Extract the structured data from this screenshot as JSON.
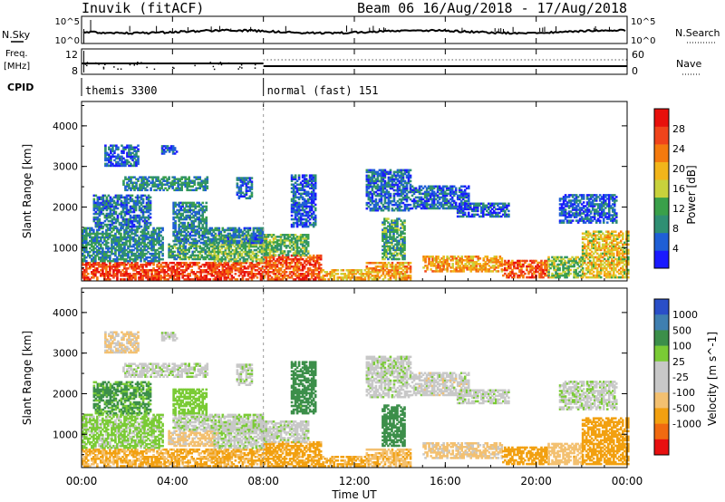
{
  "header": {
    "station": "Inuvik (fitACF)",
    "beam_dates": "Beam 06 16/Aug/2018 - 17/Aug/2018"
  },
  "top_panels": {
    "nsky_label": "N.Sky",
    "nsky_ticks": [
      "10^5",
      "10^0"
    ],
    "nsearch_label": "N.Search",
    "nsearch_ticks": [
      "10^5",
      "10^0"
    ],
    "freq_label_1": "Freq.",
    "freq_label_2": "[MHz]",
    "freq_ticks": [
      "12",
      "8"
    ],
    "nave_label": "Nave",
    "nave_ticks": [
      "60",
      "0"
    ],
    "cpid_label": "CPID",
    "cpid_segments": [
      {
        "start": 0,
        "label": "themis 3300"
      },
      {
        "start": 8,
        "label": "normal (fast) 151"
      }
    ]
  },
  "colors": {
    "power_scale": [
      "#1a1aff",
      "#1f5fd6",
      "#2f8f73",
      "#3aa04a",
      "#c8d23c",
      "#f2b51a",
      "#f47a0e",
      "#f0441b",
      "#e8100c"
    ],
    "velocity_scale": [
      "#e81010",
      "#f06a10",
      "#f2a010",
      "#f3c070",
      "#c8c8c8",
      "#c8c8c8",
      "#7acb35",
      "#3c8f4a",
      "#3f7fb0",
      "#2a4fc8"
    ],
    "grey": "#c8c8c8"
  },
  "chart_data": [
    {
      "type": "heatmap",
      "name": "power",
      "ylabel": "Slant Range [km]",
      "ylim": [
        180,
        4600
      ],
      "yticks": [
        1000,
        2000,
        3000,
        4000
      ],
      "xlim": [
        0,
        24
      ],
      "colorbar_label": "Power [dB]",
      "colorbar_ticks": [
        4,
        8,
        12,
        16,
        20,
        24,
        28
      ],
      "colorbar_range": [
        0,
        32
      ]
    },
    {
      "type": "heatmap",
      "name": "velocity",
      "ylabel": "Slant Range [km]",
      "ylim": [
        180,
        4600
      ],
      "yticks": [
        1000,
        2000,
        3000,
        4000
      ],
      "xlim": [
        0,
        24
      ],
      "colorbar_label": "Velocity [m s^-1]",
      "colorbar_ticks": [
        "1000",
        "500",
        "100",
        "25",
        "-25",
        "-100",
        "-500",
        "-1000"
      ]
    }
  ],
  "x_axis": {
    "xlabel": "Time UT",
    "ticks": [
      {
        "h": 0,
        "label": "00:00"
      },
      {
        "h": 4,
        "label": "04:00"
      },
      {
        "h": 8,
        "label": "08:00"
      },
      {
        "h": 12,
        "label": "12:00"
      },
      {
        "h": 16,
        "label": "16:00"
      },
      {
        "h": 20,
        "label": "20:00"
      },
      {
        "h": 24,
        "label": "00:00"
      }
    ]
  },
  "echo_regions": [
    {
      "t": [
        0.0,
        8.0
      ],
      "r": [
        200,
        650
      ],
      "pw": 27,
      "vel": -120
    },
    {
      "t": [
        0.0,
        3.6
      ],
      "r": [
        650,
        1500
      ],
      "pw": 9,
      "vel": 40
    },
    {
      "t": [
        3.8,
        6.0
      ],
      "r": [
        700,
        1100
      ],
      "pw": 11,
      "vel": -40
    },
    {
      "t": [
        5.8,
        8.0
      ],
      "r": [
        650,
        1300
      ],
      "pw": 13,
      "vel": 10
    },
    {
      "t": [
        4.0,
        8.0
      ],
      "r": [
        1100,
        1500
      ],
      "pw": 8,
      "vel": 15
    },
    {
      "t": [
        0.5,
        3.0
      ],
      "r": [
        1500,
        2300
      ],
      "pw": 7,
      "vel": 120
    },
    {
      "t": [
        4.0,
        5.5
      ],
      "r": [
        1500,
        2100
      ],
      "pw": 8,
      "vel": 60
    },
    {
      "t": [
        1.8,
        5.5
      ],
      "r": [
        2400,
        2750
      ],
      "pw": 9,
      "vel": 5
    },
    {
      "t": [
        6.8,
        7.5
      ],
      "r": [
        2200,
        2700
      ],
      "pw": 6,
      "vel": 10
    },
    {
      "t": [
        1.0,
        2.5
      ],
      "r": [
        3000,
        3500
      ],
      "pw": 5,
      "vel": -30
    },
    {
      "t": [
        3.5,
        4.2
      ],
      "r": [
        3300,
        3500
      ],
      "pw": 6,
      "vel": 10
    },
    {
      "t": [
        8.0,
        10.5
      ],
      "r": [
        200,
        800
      ],
      "pw": 26,
      "vel": -160
    },
    {
      "t": [
        8.0,
        10.0
      ],
      "r": [
        800,
        1300
      ],
      "pw": 13,
      "vel": 5
    },
    {
      "t": [
        9.2,
        10.3
      ],
      "r": [
        1500,
        2800
      ],
      "pw": 5,
      "vel": 180
    },
    {
      "t": [
        10.5,
        12.5
      ],
      "r": [
        200,
        450
      ],
      "pw": 20,
      "vel": -130
    },
    {
      "t": [
        12.5,
        14.5
      ],
      "r": [
        200,
        650
      ],
      "pw": 21,
      "vel": -90
    },
    {
      "t": [
        13.2,
        14.2
      ],
      "r": [
        700,
        1700
      ],
      "pw": 11,
      "vel": 300
    },
    {
      "t": [
        12.5,
        14.5
      ],
      "r": [
        1900,
        2900
      ],
      "pw": 6,
      "vel": 8
    },
    {
      "t": [
        14.5,
        17.0
      ],
      "r": [
        1950,
        2500
      ],
      "pw": 6,
      "vel": 0
    },
    {
      "t": [
        16.5,
        18.8
      ],
      "r": [
        1750,
        2100
      ],
      "pw": 5,
      "vel": 8
    },
    {
      "t": [
        15.0,
        18.5
      ],
      "r": [
        400,
        800
      ],
      "pw": 21,
      "vel": -40
    },
    {
      "t": [
        18.5,
        20.5
      ],
      "r": [
        250,
        700
      ],
      "pw": 26,
      "vel": -200
    },
    {
      "t": [
        20.5,
        22.0
      ],
      "r": [
        250,
        750
      ],
      "pw": 14,
      "vel": -70
    },
    {
      "t": [
        22.0,
        24.0
      ],
      "r": [
        250,
        1400
      ],
      "pw": 18,
      "vel": -320
    },
    {
      "t": [
        21.0,
        23.5
      ],
      "r": [
        1600,
        2300
      ],
      "pw": 5,
      "vel": 10
    }
  ]
}
